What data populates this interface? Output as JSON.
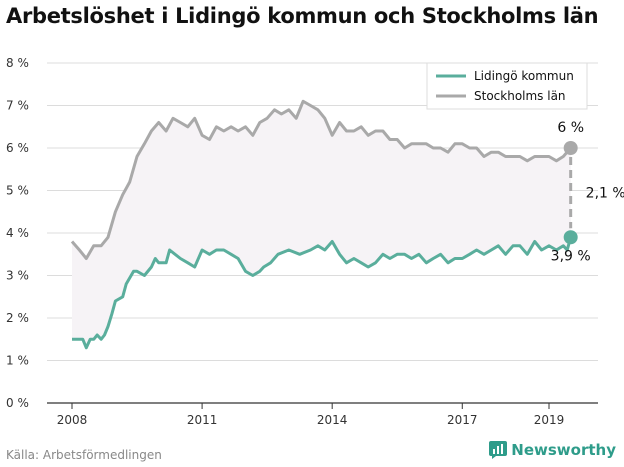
{
  "title": "Arbetslöshet i Lidingö kommun och Stockholms län",
  "source": "Källa: Arbetsförmedlingen",
  "brand": "Newsworthy",
  "colors": {
    "lidingo": "#5aae9c",
    "stockholm": "#a9a9a9",
    "band": "#f6f3f6",
    "brand": "#2e9c8a"
  },
  "chart_data": {
    "type": "line",
    "ylim": [
      0,
      8
    ],
    "y_ticks": [
      0,
      1,
      2,
      3,
      4,
      5,
      6,
      7,
      8
    ],
    "y_tick_labels": [
      "0 %",
      "1 %",
      "2 %",
      "3 %",
      "4 %",
      "5 %",
      "6 %",
      "7 %",
      "8 %"
    ],
    "x_ticks": [
      2008,
      2011,
      2014,
      2017,
      2019
    ],
    "x_tick_labels": [
      "2008",
      "2011",
      "2014",
      "2017",
      "2019"
    ],
    "legend": "top-right",
    "series": [
      {
        "name": "Lidingö kommun",
        "color": "#5aae9c",
        "x": [
          2008.0,
          2008.25,
          2008.33,
          2008.42,
          2008.5,
          2008.58,
          2008.67,
          2008.75,
          2008.83,
          2008.92,
          2009.0,
          2009.17,
          2009.25,
          2009.42,
          2009.5,
          2009.67,
          2009.83,
          2009.92,
          2010.0,
          2010.17,
          2010.25,
          2010.5,
          2010.67,
          2010.83,
          2011.0,
          2011.17,
          2011.33,
          2011.5,
          2011.67,
          2011.83,
          2012.0,
          2012.17,
          2012.33,
          2012.42,
          2012.58,
          2012.75,
          2013.0,
          2013.25,
          2013.5,
          2013.67,
          2013.83,
          2014.0,
          2014.17,
          2014.33,
          2014.5,
          2014.67,
          2014.83,
          2015.0,
          2015.17,
          2015.33,
          2015.5,
          2015.67,
          2015.83,
          2016.0,
          2016.17,
          2016.33,
          2016.5,
          2016.67,
          2016.83,
          2017.0,
          2017.17,
          2017.33,
          2017.5,
          2017.67,
          2017.83,
          2018.0,
          2018.17,
          2018.33,
          2018.5,
          2018.67,
          2018.83,
          2019.0,
          2019.17,
          2019.33,
          2019.42,
          2019.5
        ],
        "values": [
          1.5,
          1.5,
          1.3,
          1.5,
          1.5,
          1.6,
          1.5,
          1.6,
          1.8,
          2.1,
          2.4,
          2.5,
          2.8,
          3.1,
          3.1,
          3.0,
          3.2,
          3.4,
          3.3,
          3.3,
          3.6,
          3.4,
          3.3,
          3.2,
          3.6,
          3.5,
          3.6,
          3.6,
          3.5,
          3.4,
          3.1,
          3.0,
          3.1,
          3.2,
          3.3,
          3.5,
          3.6,
          3.5,
          3.6,
          3.7,
          3.6,
          3.8,
          3.5,
          3.3,
          3.4,
          3.3,
          3.2,
          3.3,
          3.5,
          3.4,
          3.5,
          3.5,
          3.4,
          3.5,
          3.3,
          3.4,
          3.5,
          3.3,
          3.4,
          3.4,
          3.5,
          3.6,
          3.5,
          3.6,
          3.7,
          3.5,
          3.7,
          3.7,
          3.5,
          3.8,
          3.6,
          3.7,
          3.6,
          3.7,
          3.6,
          3.9
        ]
      },
      {
        "name": "Stockholms län",
        "color": "#a9a9a9",
        "x": [
          2008.0,
          2008.17,
          2008.33,
          2008.5,
          2008.67,
          2008.83,
          2009.0,
          2009.17,
          2009.33,
          2009.5,
          2009.67,
          2009.83,
          2010.0,
          2010.17,
          2010.33,
          2010.5,
          2010.67,
          2010.83,
          2011.0,
          2011.17,
          2011.33,
          2011.5,
          2011.67,
          2011.83,
          2012.0,
          2012.17,
          2012.33,
          2012.5,
          2012.67,
          2012.83,
          2013.0,
          2013.17,
          2013.33,
          2013.5,
          2013.67,
          2013.83,
          2014.0,
          2014.17,
          2014.33,
          2014.5,
          2014.67,
          2014.83,
          2015.0,
          2015.17,
          2015.33,
          2015.5,
          2015.67,
          2015.83,
          2016.0,
          2016.17,
          2016.33,
          2016.5,
          2016.67,
          2016.83,
          2017.0,
          2017.17,
          2017.33,
          2017.5,
          2017.67,
          2017.83,
          2018.0,
          2018.17,
          2018.33,
          2018.5,
          2018.67,
          2018.83,
          2019.0,
          2019.17,
          2019.33,
          2019.5
        ],
        "values": [
          3.8,
          3.6,
          3.4,
          3.7,
          3.7,
          3.9,
          4.5,
          4.9,
          5.2,
          5.8,
          6.1,
          6.4,
          6.6,
          6.4,
          6.7,
          6.6,
          6.5,
          6.7,
          6.3,
          6.2,
          6.5,
          6.4,
          6.5,
          6.4,
          6.5,
          6.3,
          6.6,
          6.7,
          6.9,
          6.8,
          6.9,
          6.7,
          7.1,
          7.0,
          6.9,
          6.7,
          6.3,
          6.6,
          6.4,
          6.4,
          6.5,
          6.3,
          6.4,
          6.4,
          6.2,
          6.2,
          6.0,
          6.1,
          6.1,
          6.1,
          6.0,
          6.0,
          5.9,
          6.1,
          6.1,
          6.0,
          6.0,
          5.8,
          5.9,
          5.9,
          5.8,
          5.8,
          5.8,
          5.7,
          5.8,
          5.8,
          5.8,
          5.7,
          5.8,
          6.0
        ]
      }
    ],
    "end_labels": {
      "lidingo": "3,9 %",
      "stockholm": "6 %",
      "difference": "2,1 %"
    }
  }
}
